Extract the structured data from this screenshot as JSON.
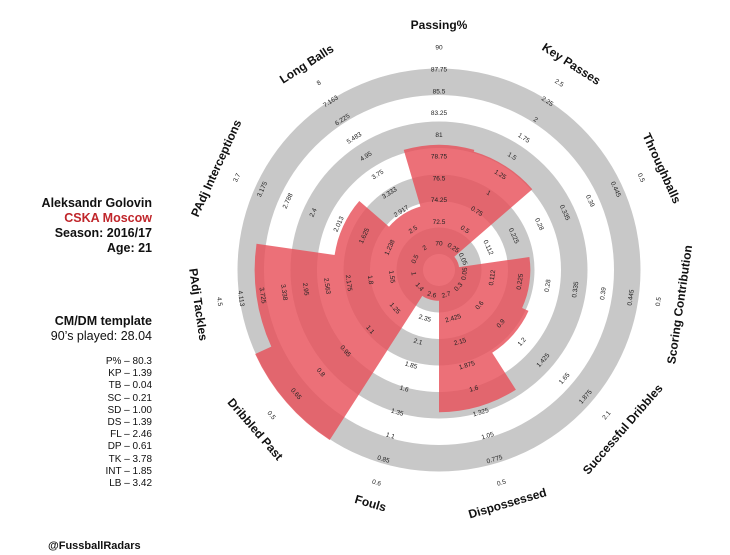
{
  "player": {
    "name": "Aleksandr Golovin",
    "club": "CSKA Moscow",
    "season": "Season: 2016/17",
    "age": "Age: 21"
  },
  "template": {
    "title": "CM/DM template",
    "minutes": "90’s played: 28.04"
  },
  "stats": [
    "P% – 80.3",
    "KP – 1.39",
    "TB – 0.04",
    "SC – 0.21",
    "SD – 1.00",
    "DS – 1.39",
    "FL – 2.46",
    "DP – 0.61",
    "TK – 3.78",
    "INT – 1.85",
    "LB – 3.42"
  ],
  "credit": "@FussballRadars",
  "colors": {
    "fill": "#e8505a",
    "ring": "#c8c8c8",
    "club": "#c0262b"
  },
  "chart_data": {
    "type": "radar",
    "rings": 8,
    "axes": [
      {
        "label": "Passing%",
        "value": 80.3,
        "ticks": [
          "70",
          "72.5",
          "74.25",
          "76.5",
          "78.75",
          "81",
          "83.25",
          "85.5",
          "87.75",
          "90"
        ]
      },
      {
        "label": "Key Passes",
        "value": 1.39,
        "ticks": [
          "0.25",
          "0.5",
          "0.75",
          "1",
          "1.25",
          "1.5",
          "1.75",
          "2",
          "2.25",
          "2.5"
        ]
      },
      {
        "label": "Throughballs",
        "value": 0.04,
        "ticks": [
          "0.05",
          "0.112",
          "0.225",
          "0.28",
          "0.335",
          "0.39",
          "0.445",
          "0.5"
        ]
      },
      {
        "label": "Scoring Contribution",
        "value": 0.21,
        "ticks": [
          "0.05",
          "0.112",
          "0.225",
          "0.28",
          "0.335",
          "0.39",
          "0.445",
          "0.5"
        ]
      },
      {
        "label": "Successful Dribbles",
        "value": 1.0,
        "ticks": [
          "0.3",
          "0.6",
          "0.9",
          "1.2",
          "1.425",
          "1.65",
          "1.875",
          "2.1"
        ]
      },
      {
        "label": "Dispossessed",
        "value": 1.39,
        "ticks": [
          "2.7",
          "2.425",
          "2.15",
          "1.875",
          "1.6",
          "1.325",
          "1.05",
          "0.775",
          "0.5"
        ]
      },
      {
        "label": "Fouls",
        "value": 2.46,
        "ticks": [
          "2.6",
          "2.35",
          "2.1",
          "1.85",
          "1.6",
          "1.35",
          "1.1",
          "0.85",
          "0.6"
        ]
      },
      {
        "label": "Dribbled Past",
        "value": 0.61,
        "ticks": [
          "1.4",
          "1.25",
          "1.1",
          "0.95",
          "0.8",
          "0.65",
          "0.5"
        ]
      },
      {
        "label": "PAdj Tackles",
        "value": 3.78,
        "ticks": [
          "1",
          "1.55",
          "1.8",
          "2.175",
          "2.563",
          "2.95",
          "3.338",
          "3.725",
          "4.113",
          "4.5"
        ]
      },
      {
        "label": "PAdj Interceptions",
        "value": 1.85,
        "ticks": [
          "0.5",
          "1.238",
          "1.625",
          "2.013",
          "2.4",
          "2.788",
          "3.175",
          "3.7"
        ]
      },
      {
        "label": "Long Balls",
        "value": 3.42,
        "ticks": [
          "2",
          "2.5",
          "2.917",
          "3.333",
          "3.75",
          "4.95",
          "5.483",
          "6.225",
          "7.163",
          "8"
        ]
      }
    ]
  }
}
